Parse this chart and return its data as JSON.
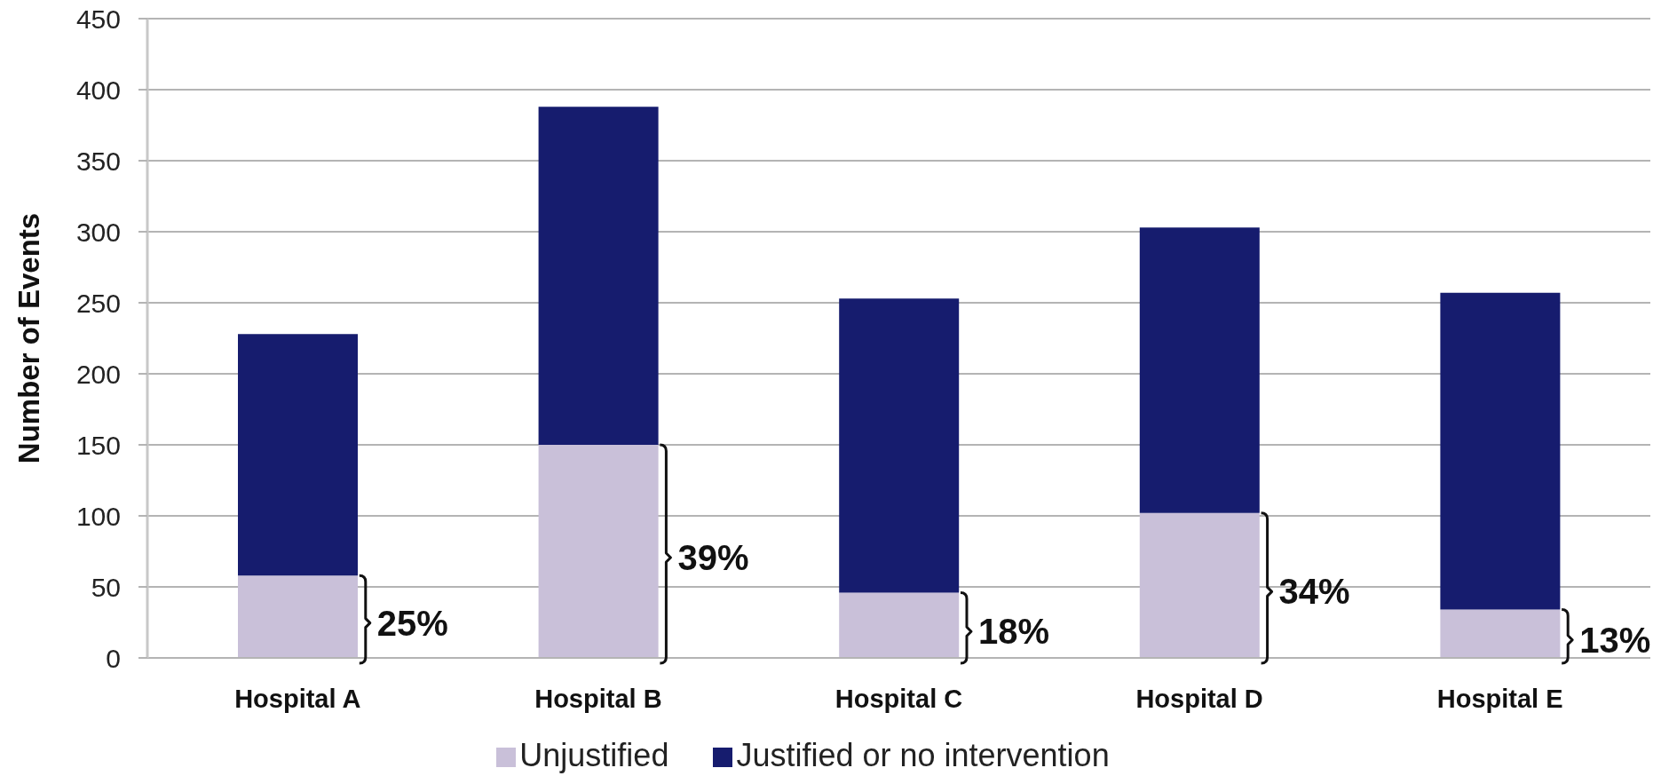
{
  "chart_data": {
    "type": "bar",
    "stacked": true,
    "categories": [
      "Hospital A",
      "Hospital B",
      "Hospital C",
      "Hospital D",
      "Hospital E"
    ],
    "series": [
      {
        "name": "Unjustified",
        "color": "#c9c0d9",
        "values": [
          58,
          150,
          46,
          102,
          34
        ]
      },
      {
        "name": "Justified or no intervention",
        "color": "#161c6e",
        "values": [
          170,
          238,
          207,
          201,
          223
        ]
      }
    ],
    "ylabel": "Number of Events",
    "ylim": [
      0,
      450
    ],
    "yticks": [
      0,
      50,
      100,
      150,
      200,
      250,
      300,
      350,
      400,
      450
    ],
    "grid": "y",
    "legend": "bottom",
    "annotations": [
      "25%",
      "39%",
      "18%",
      "34%",
      "13%"
    ]
  }
}
